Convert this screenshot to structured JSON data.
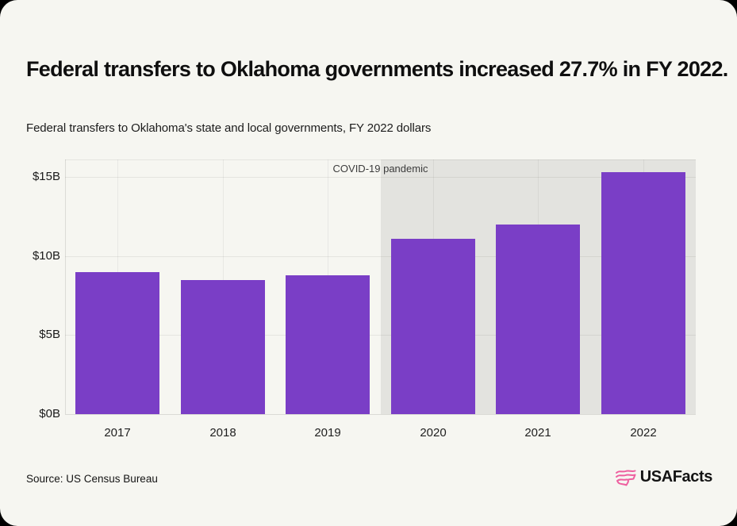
{
  "header": {
    "title": "Federal transfers to Oklahoma governments increased 27.7% in FY 2022.",
    "subtitle": "Federal transfers to Oklahoma's state and local governments, FY 2022 dollars"
  },
  "chart_data": {
    "type": "bar",
    "title": "Federal transfers to Oklahoma's state and local governments, FY 2022 dollars",
    "categories": [
      "2017",
      "2018",
      "2019",
      "2020",
      "2021",
      "2022"
    ],
    "values": [
      9.0,
      8.5,
      8.8,
      11.1,
      12.0,
      15.3
    ],
    "unit": "billions of FY 2022 dollars",
    "xlabel": "",
    "ylabel": "",
    "ylim": [
      0,
      16.1
    ],
    "yticks": [
      {
        "value": 0,
        "label": "$0B"
      },
      {
        "value": 5,
        "label": "$5B"
      },
      {
        "value": 10,
        "label": "$10B"
      },
      {
        "value": 15,
        "label": "$15B"
      }
    ],
    "grid": true,
    "legend": "none",
    "bar_color": "#7a3ec6",
    "annotation": {
      "label": "COVID-19 pandemic",
      "region_start_category": "2020",
      "region_color": "#e3e3df"
    }
  },
  "footer": {
    "source": "Source: US Census Bureau",
    "logo_text": "USAFacts",
    "logo_color": "#ee5f9f"
  }
}
